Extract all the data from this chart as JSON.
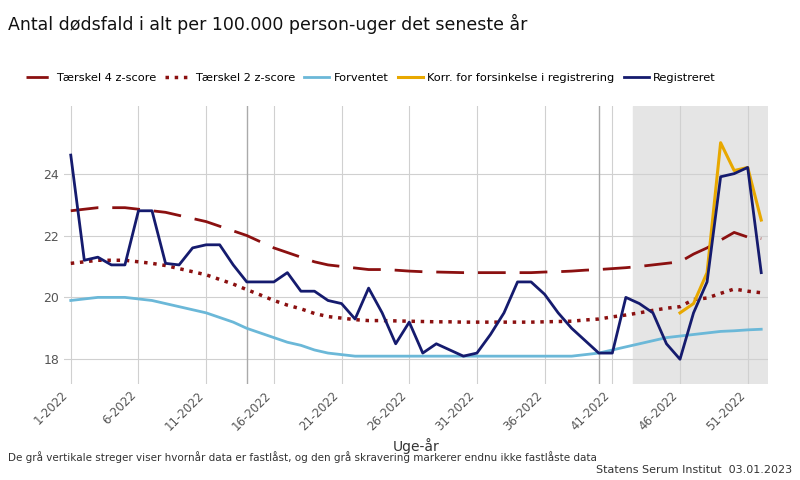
{
  "title": "Antal dødsfald i alt per 100.000 person-uger det seneste år",
  "xlabel": "Uge-år",
  "footnote": "De grå vertikale streger viser hvornår data er fastlåst, og den grå skravering markerer endnu ikke fastlåste data",
  "source": "Statens Serum Institut  03.01.2023",
  "background_color": "#ffffff",
  "shade_start_week": 43,
  "x_ticks": [
    1,
    6,
    11,
    16,
    21,
    26,
    31,
    36,
    41,
    46,
    51
  ],
  "x_tick_labels": [
    "1-2022",
    "6-2022",
    "11-2022",
    "16-2022",
    "21-2022",
    "26-2022",
    "31-2022",
    "36-2022",
    "41-2022",
    "46-2022",
    "51-2022"
  ],
  "ylim": [
    17.2,
    26.2
  ],
  "y_ticks": [
    18,
    20,
    22,
    24
  ],
  "vlines": [
    14,
    40
  ],
  "weeks": [
    1,
    2,
    3,
    4,
    5,
    6,
    7,
    8,
    9,
    10,
    11,
    12,
    13,
    14,
    15,
    16,
    17,
    18,
    19,
    20,
    21,
    22,
    23,
    24,
    25,
    26,
    27,
    28,
    29,
    30,
    31,
    32,
    33,
    34,
    35,
    36,
    37,
    38,
    39,
    40,
    41,
    42,
    43,
    44,
    45,
    46,
    47,
    48,
    49,
    50,
    51,
    52
  ],
  "registreret": [
    24.6,
    21.2,
    21.3,
    21.05,
    21.05,
    22.8,
    22.8,
    21.1,
    21.05,
    21.6,
    21.7,
    21.7,
    21.05,
    20.5,
    20.5,
    20.5,
    20.8,
    20.2,
    20.2,
    19.9,
    19.8,
    19.3,
    20.3,
    19.5,
    18.5,
    19.2,
    18.2,
    18.5,
    18.3,
    18.1,
    18.2,
    18.8,
    19.5,
    20.5,
    20.5,
    20.1,
    19.5,
    19.0,
    18.6,
    18.2,
    18.2,
    20.0,
    19.8,
    19.5,
    18.5,
    18.0,
    19.5,
    20.5,
    23.9,
    24.0,
    24.2,
    20.8
  ],
  "forventet": [
    19.9,
    19.95,
    20.0,
    20.0,
    20.0,
    19.95,
    19.9,
    19.8,
    19.7,
    19.6,
    19.5,
    19.35,
    19.2,
    19.0,
    18.85,
    18.7,
    18.55,
    18.45,
    18.3,
    18.2,
    18.15,
    18.1,
    18.1,
    18.1,
    18.1,
    18.1,
    18.1,
    18.1,
    18.1,
    18.1,
    18.1,
    18.1,
    18.1,
    18.1,
    18.1,
    18.1,
    18.1,
    18.1,
    18.15,
    18.2,
    18.3,
    18.4,
    18.5,
    18.6,
    18.7,
    18.75,
    18.8,
    18.85,
    18.9,
    18.92,
    18.95,
    18.97
  ],
  "tarskel4": [
    22.8,
    22.85,
    22.9,
    22.9,
    22.9,
    22.85,
    22.8,
    22.75,
    22.65,
    22.55,
    22.45,
    22.3,
    22.15,
    22.0,
    21.8,
    21.6,
    21.45,
    21.3,
    21.15,
    21.05,
    21.0,
    20.95,
    20.9,
    20.9,
    20.88,
    20.85,
    20.83,
    20.82,
    20.81,
    20.8,
    20.8,
    20.8,
    20.8,
    20.8,
    20.8,
    20.82,
    20.83,
    20.85,
    20.88,
    20.9,
    20.93,
    20.96,
    21.0,
    21.05,
    21.1,
    21.15,
    21.4,
    21.6,
    21.85,
    22.1,
    21.95,
    21.9
  ],
  "tarskel2": [
    21.1,
    21.15,
    21.2,
    21.2,
    21.2,
    21.15,
    21.1,
    21.03,
    20.93,
    20.83,
    20.73,
    20.58,
    20.43,
    20.25,
    20.08,
    19.9,
    19.75,
    19.63,
    19.48,
    19.38,
    19.33,
    19.28,
    19.25,
    19.25,
    19.24,
    19.23,
    19.22,
    19.21,
    19.21,
    19.2,
    19.2,
    19.2,
    19.2,
    19.2,
    19.2,
    19.21,
    19.22,
    19.23,
    19.27,
    19.3,
    19.37,
    19.43,
    19.5,
    19.58,
    19.65,
    19.7,
    19.93,
    19.98,
    20.13,
    20.27,
    20.2,
    20.15
  ],
  "korr": [
    null,
    null,
    null,
    null,
    null,
    null,
    null,
    null,
    null,
    null,
    null,
    null,
    null,
    null,
    null,
    null,
    null,
    null,
    null,
    null,
    null,
    null,
    null,
    null,
    null,
    null,
    null,
    null,
    null,
    null,
    null,
    null,
    null,
    null,
    null,
    null,
    null,
    null,
    null,
    null,
    null,
    null,
    null,
    null,
    null,
    19.5,
    19.8,
    20.8,
    25.0,
    24.1,
    24.2,
    22.5
  ],
  "legend": {
    "tarskel4_label": "Tærskel 4 z-score",
    "tarskel2_label": "Tærskel 2 z-score",
    "forventet_label": "Forventet",
    "korr_label": "Korr. for forsinkelse i registrering",
    "registreret_label": "Registreret"
  },
  "colors": {
    "tarskel4": "#8B1010",
    "tarskel2": "#8B1010",
    "forventet": "#6BB8D8",
    "korr": "#E8A800",
    "registreret": "#151B6E",
    "shade": "#E5E5E5",
    "vline": "#AAAAAA",
    "grid": "#D0D0D0"
  }
}
